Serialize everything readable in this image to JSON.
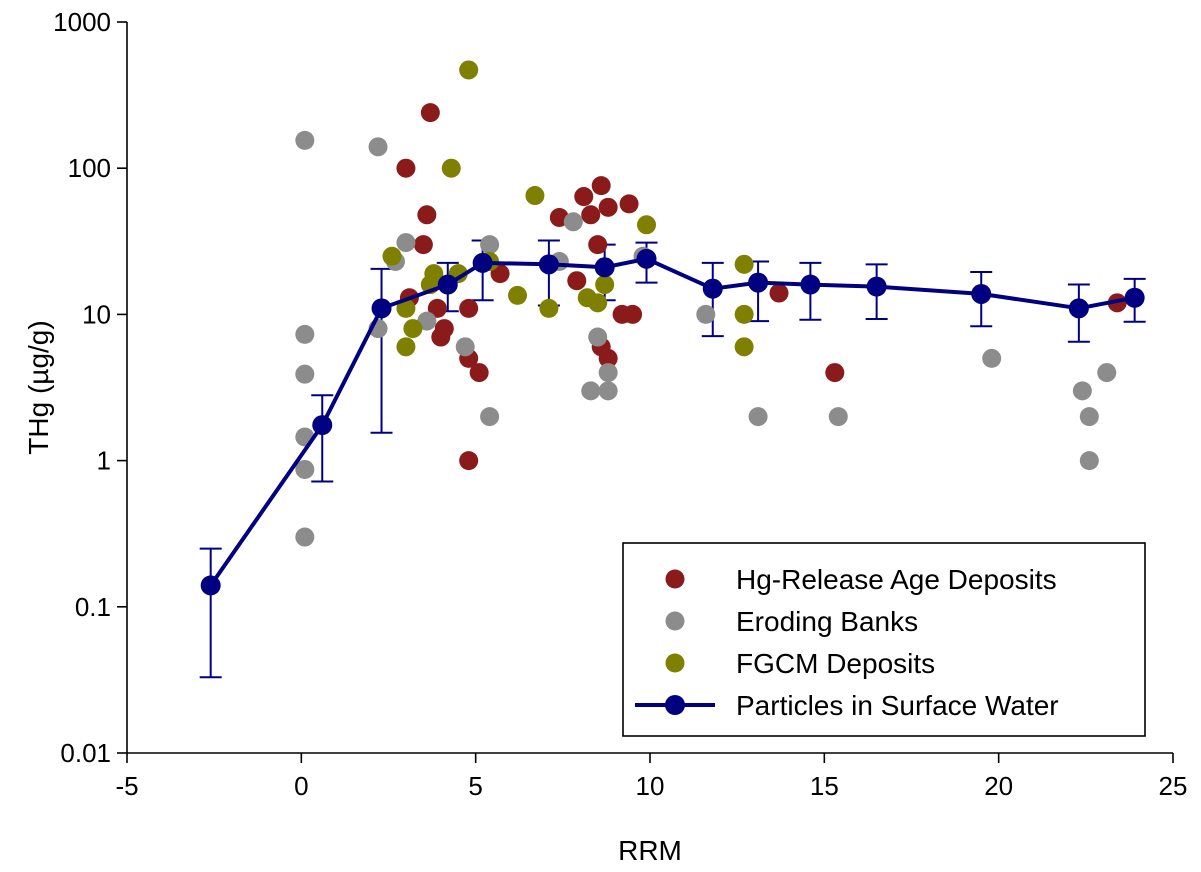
{
  "chart_data": {
    "type": "scatter",
    "title": "",
    "xlabel": "RRM",
    "ylabel": "THg (µg/g)",
    "xlim": [
      -5,
      25
    ],
    "ylim": [
      0.01,
      1000
    ],
    "y_scale": "log",
    "x_ticks": [
      -5,
      0,
      5,
      10,
      15,
      20,
      25
    ],
    "x_tick_labels": [
      "-5",
      "0",
      "5",
      "10",
      "15",
      "20",
      "25"
    ],
    "y_ticks": [
      0.01,
      0.1,
      1,
      10,
      100,
      1000
    ],
    "y_tick_labels": [
      "0.01",
      "0.1",
      "1",
      "10",
      "100",
      "1000"
    ],
    "grid": false,
    "legend_position": "bottom-right",
    "series": [
      {
        "name": "Hg-Release Age Deposits",
        "kind": "scatter",
        "color": "#8b1a1a",
        "points": [
          [
            3.0,
            100
          ],
          [
            3.7,
            240
          ],
          [
            3.6,
            48
          ],
          [
            3.5,
            30
          ],
          [
            3.1,
            13
          ],
          [
            3.9,
            11
          ],
          [
            4.0,
            7
          ],
          [
            4.1,
            8
          ],
          [
            4.8,
            11
          ],
          [
            4.8,
            5
          ],
          [
            5.1,
            4
          ],
          [
            4.8,
            1
          ],
          [
            5.7,
            19
          ],
          [
            7.4,
            46
          ],
          [
            7.9,
            17
          ],
          [
            8.1,
            64
          ],
          [
            8.3,
            48
          ],
          [
            8.5,
            30
          ],
          [
            8.6,
            76
          ],
          [
            8.8,
            54
          ],
          [
            9.4,
            57
          ],
          [
            8.6,
            6
          ],
          [
            8.8,
            5
          ],
          [
            9.2,
            10
          ],
          [
            9.5,
            10
          ],
          [
            13.7,
            14
          ],
          [
            15.3,
            4
          ],
          [
            23.4,
            12
          ]
        ]
      },
      {
        "name": "Eroding Banks",
        "kind": "scatter",
        "color": "#8c8c8c",
        "points": [
          [
            0.1,
            155
          ],
          [
            0.1,
            7.3
          ],
          [
            0.1,
            3.9
          ],
          [
            0.1,
            1.45
          ],
          [
            0.1,
            0.87
          ],
          [
            0.1,
            0.3
          ],
          [
            2.2,
            140
          ],
          [
            2.2,
            8
          ],
          [
            2.7,
            23
          ],
          [
            3.0,
            31
          ],
          [
            3.6,
            9
          ],
          [
            4.7,
            6
          ],
          [
            5.4,
            30
          ],
          [
            5.4,
            2
          ],
          [
            7.4,
            23
          ],
          [
            7.8,
            43
          ],
          [
            8.3,
            3
          ],
          [
            8.5,
            7
          ],
          [
            8.8,
            4
          ],
          [
            8.8,
            3
          ],
          [
            9.8,
            25
          ],
          [
            11.6,
            10
          ],
          [
            13.1,
            2
          ],
          [
            15.4,
            2
          ],
          [
            19.8,
            5
          ],
          [
            22.4,
            3
          ],
          [
            22.6,
            2
          ],
          [
            22.6,
            1
          ],
          [
            23.1,
            4
          ]
        ]
      },
      {
        "name": "FGCM Deposits",
        "kind": "scatter",
        "color": "#808000",
        "points": [
          [
            4.8,
            470
          ],
          [
            4.3,
            100
          ],
          [
            6.7,
            65
          ],
          [
            9.9,
            41
          ],
          [
            2.6,
            25
          ],
          [
            3.8,
            19
          ],
          [
            4.5,
            19
          ],
          [
            3.7,
            16
          ],
          [
            5.4,
            23
          ],
          [
            3.0,
            11
          ],
          [
            3.2,
            8
          ],
          [
            3.0,
            6
          ],
          [
            6.2,
            13.5
          ],
          [
            7.1,
            11
          ],
          [
            8.2,
            13
          ],
          [
            8.5,
            12
          ],
          [
            8.7,
            16
          ],
          [
            12.7,
            22
          ],
          [
            12.7,
            10
          ],
          [
            12.7,
            6
          ]
        ]
      },
      {
        "name": "Particles in Surface Water",
        "kind": "line",
        "color": "#000080",
        "points": [
          [
            -2.6,
            0.14
          ],
          [
            0.6,
            1.75
          ],
          [
            2.3,
            11
          ],
          [
            4.2,
            16
          ],
          [
            5.2,
            22.5
          ],
          [
            7.1,
            22
          ],
          [
            8.7,
            21
          ],
          [
            9.9,
            24
          ],
          [
            11.8,
            15
          ],
          [
            13.1,
            16.5
          ],
          [
            14.6,
            16
          ],
          [
            16.5,
            15.5
          ],
          [
            19.5,
            13.8
          ],
          [
            22.3,
            11
          ],
          [
            23.9,
            13
          ]
        ],
        "error_low": [
          0.033,
          0.72,
          1.55,
          10.5,
          12.5,
          11.5,
          12.5,
          16.5,
          7.1,
          9,
          9.2,
          9.3,
          8.3,
          6.5,
          8.9
        ],
        "error_high": [
          0.25,
          2.8,
          20.5,
          22.5,
          32,
          32,
          30,
          31,
          22.5,
          23,
          22.5,
          22,
          19.5,
          16,
          17.5
        ]
      }
    ]
  }
}
